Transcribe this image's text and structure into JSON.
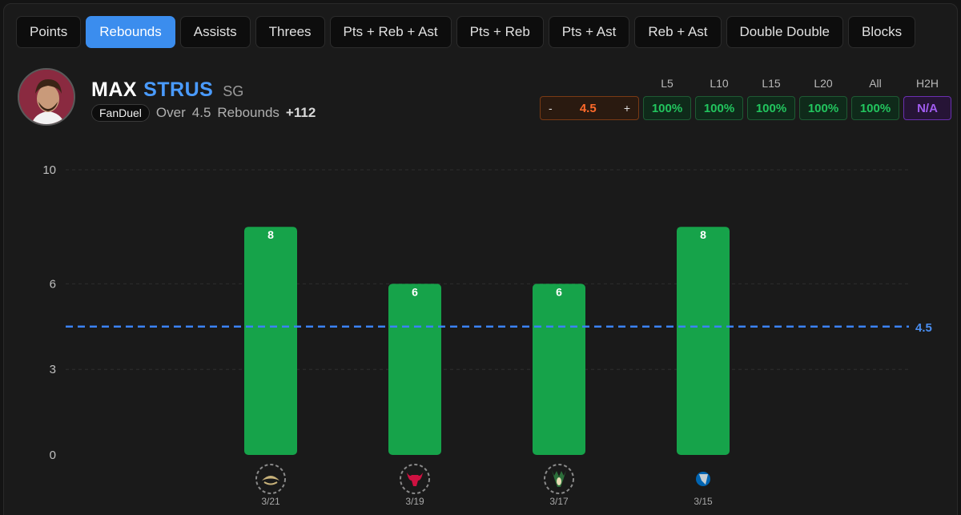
{
  "tabs": [
    {
      "label": "Points",
      "active": false
    },
    {
      "label": "Rebounds",
      "active": true
    },
    {
      "label": "Assists",
      "active": false
    },
    {
      "label": "Threes",
      "active": false
    },
    {
      "label": "Pts + Reb + Ast",
      "active": false
    },
    {
      "label": "Pts + Reb",
      "active": false
    },
    {
      "label": "Pts + Ast",
      "active": false
    },
    {
      "label": "Reb + Ast",
      "active": false
    },
    {
      "label": "Double Double",
      "active": false
    },
    {
      "label": "Blocks",
      "active": false
    }
  ],
  "player": {
    "first_name": "MAX",
    "last_name": "STRUS",
    "position": "SG"
  },
  "prop": {
    "book": "FanDuel",
    "side": "Over",
    "line": "4.5",
    "stat": "Rebounds",
    "odds": "+112"
  },
  "line_control": {
    "minus": "-",
    "value": "4.5",
    "plus": "+"
  },
  "hit_rates": [
    {
      "label": "L5",
      "value": "100%",
      "status": "hit"
    },
    {
      "label": "L10",
      "value": "100%",
      "status": "hit"
    },
    {
      "label": "L15",
      "value": "100%",
      "status": "hit"
    },
    {
      "label": "L20",
      "value": "100%",
      "status": "hit"
    },
    {
      "label": "All",
      "value": "100%",
      "status": "hit"
    },
    {
      "label": "H2H",
      "value": "N/A",
      "status": "na"
    }
  ],
  "colors": {
    "accent": "#3b8dee",
    "bar_hit": "#16a34a",
    "line": "#3b82f6",
    "na": "#a15cf0",
    "line_value": "#ff6a2a"
  },
  "chart_data": {
    "type": "bar",
    "categories": [
      "3/21",
      "3/19",
      "3/17",
      "3/15"
    ],
    "values": [
      8,
      6,
      6,
      8
    ],
    "opponents": [
      "pelicans-logo",
      "bulls-logo",
      "bucks-logo",
      "mavericks-logo"
    ],
    "y_ticks": [
      0,
      3,
      6,
      10
    ],
    "ylim": [
      0,
      10
    ],
    "reference_line": {
      "value": 4.5,
      "label": "4.5"
    },
    "grid": true
  }
}
